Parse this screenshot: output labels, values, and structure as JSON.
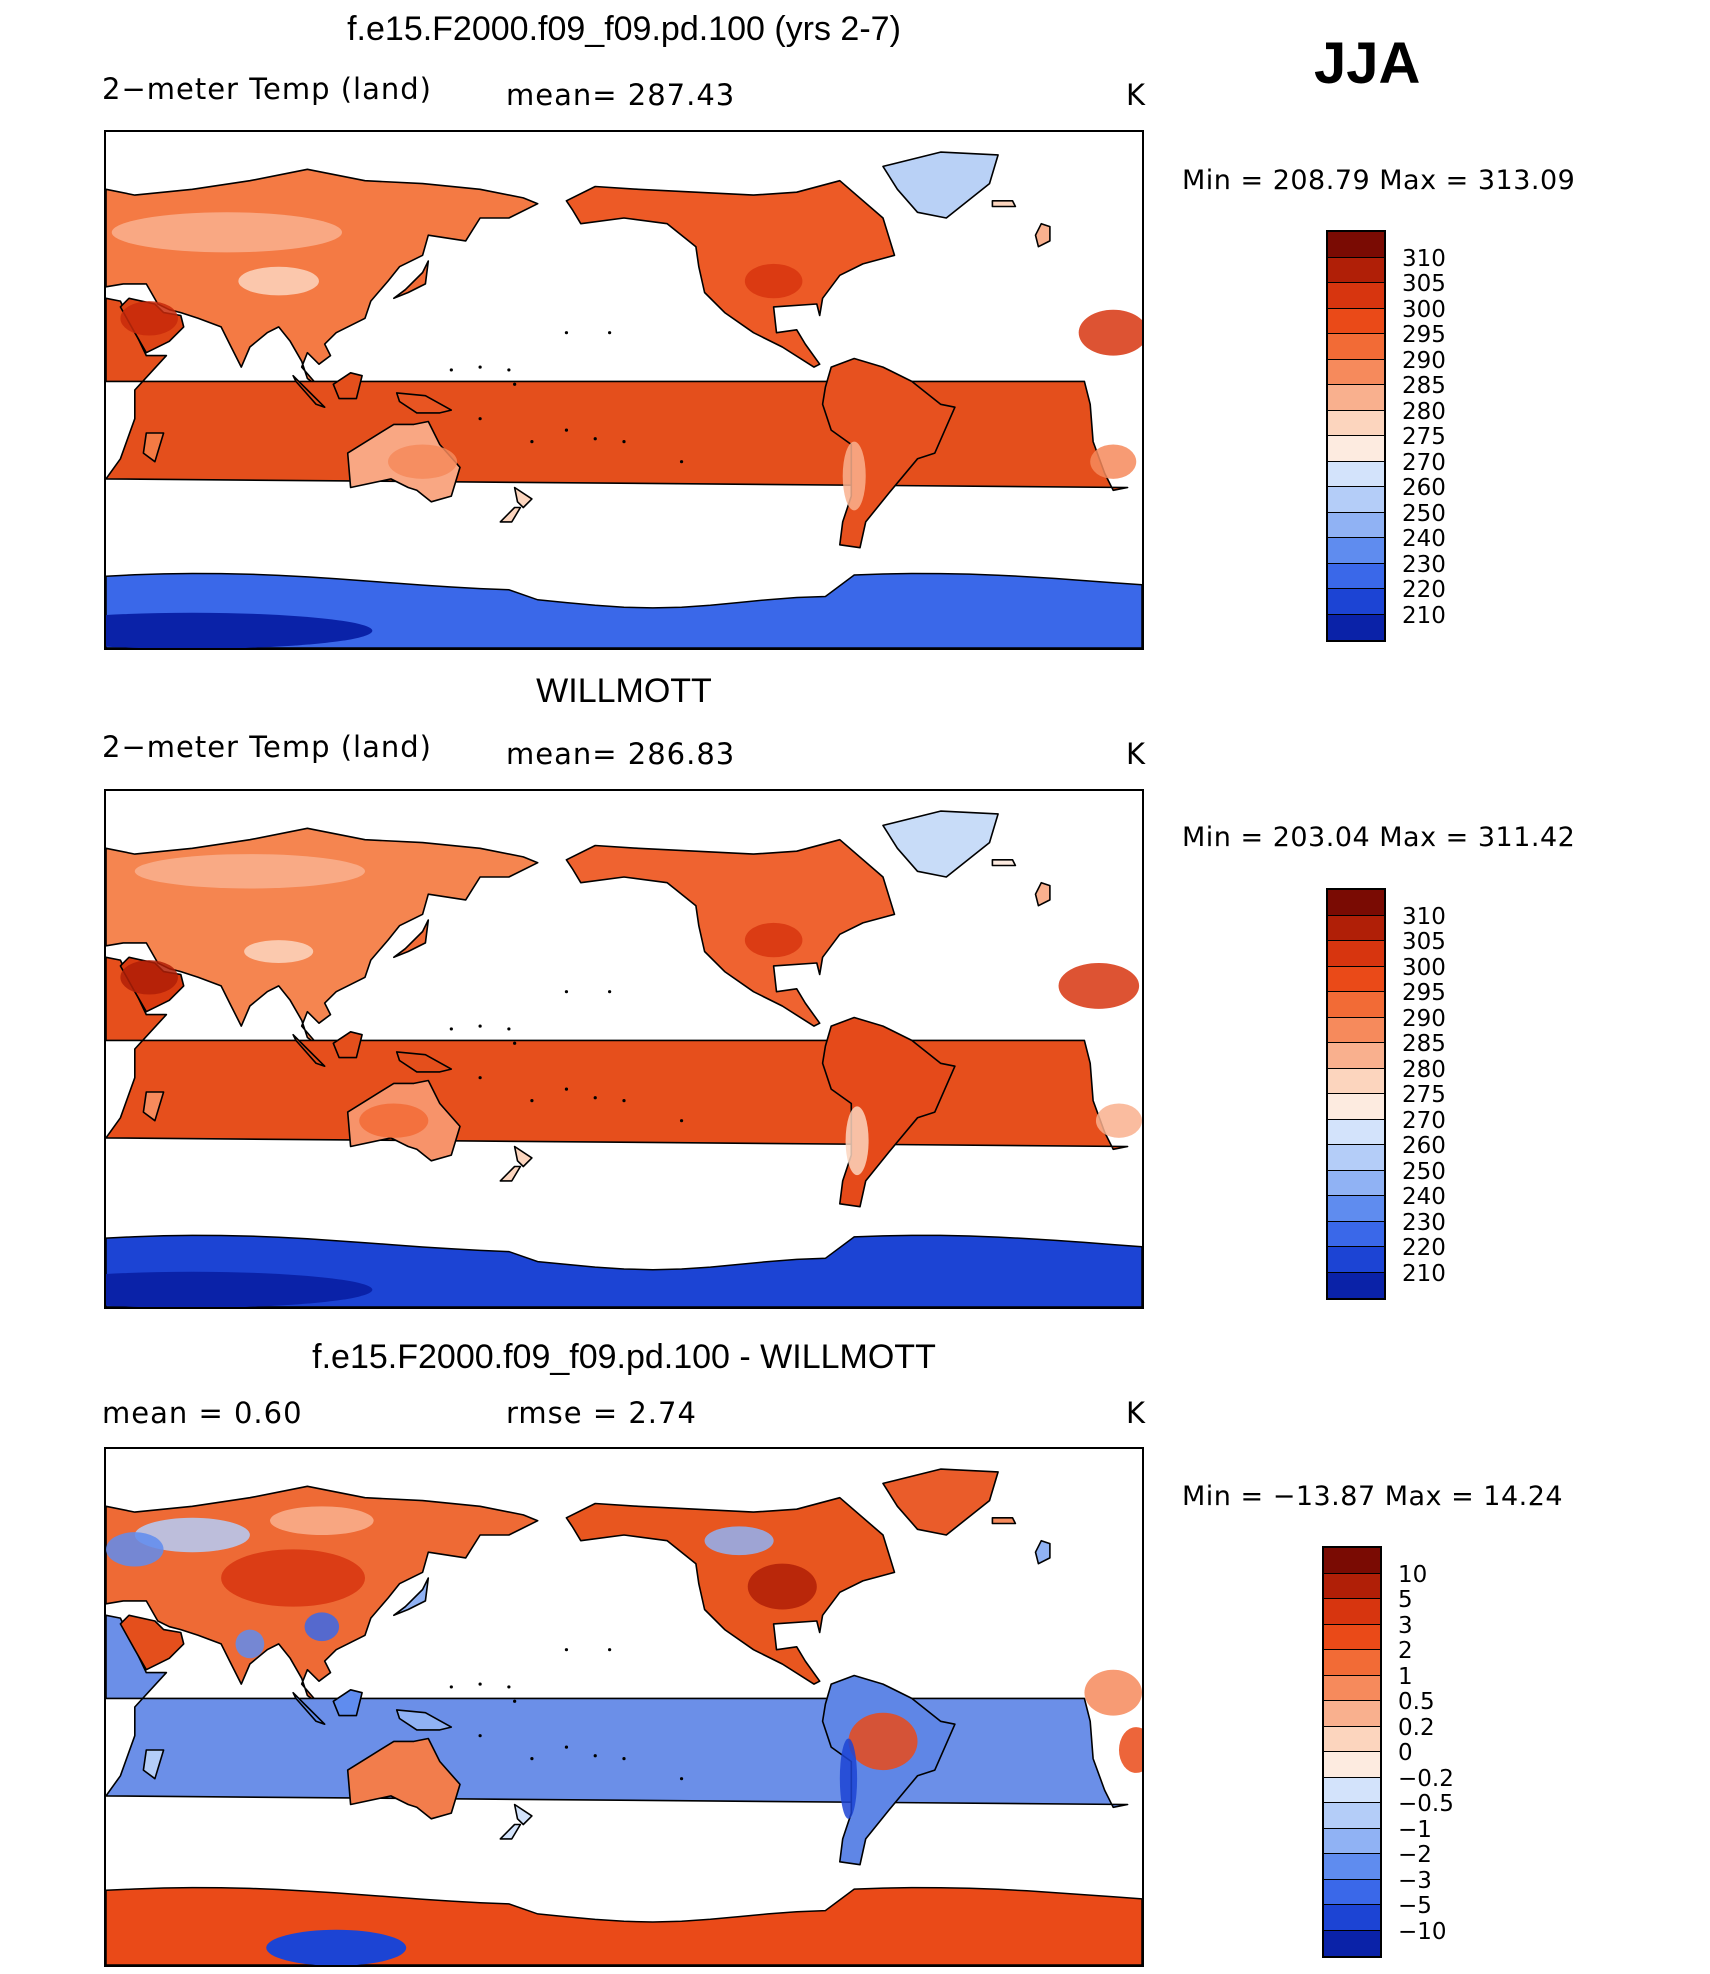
{
  "season": "JJA",
  "panels": [
    {
      "title": "f.e15.F2000.f09_f09.pd.100 (yrs 2-7)",
      "left_label": "2−meter Temp (land)",
      "mid_label": "mean= 287.43",
      "units": "K",
      "minmax": "Min  =  208.79  Max  =  313.09",
      "scheme": "abs",
      "map_variant": "model"
    },
    {
      "title": "WILLMOTT",
      "left_label": "2−meter Temp (land)",
      "mid_label": "mean= 286.83",
      "units": "K",
      "minmax": "Min  =  203.04  Max  =  311.42",
      "scheme": "abs",
      "map_variant": "obs"
    },
    {
      "title": "f.e15.F2000.f09_f09.pd.100 - WILLMOTT",
      "left_label": "mean  =     0.60",
      "mid_label": "rmse  =     2.74",
      "units": "K",
      "minmax": "Min  =  −13.87  Max  =    14.24",
      "scheme": "diff",
      "map_variant": "diff"
    }
  ],
  "colorbars": {
    "abs": {
      "labels": [
        "310",
        "305",
        "300",
        "295",
        "290",
        "285",
        "280",
        "275",
        "270",
        "260",
        "250",
        "240",
        "230",
        "220",
        "210"
      ],
      "colors": [
        "#7a0b03",
        "#b01f07",
        "#d7350f",
        "#ea4a18",
        "#f26b36",
        "#f68a5c",
        "#f9b08e",
        "#fcd5be",
        "#fdebe0",
        "#d3e3fb",
        "#b4cdf8",
        "#90b2f4",
        "#5f8cef",
        "#3a68e9",
        "#1c44d4",
        "#0a22a8"
      ]
    },
    "diff": {
      "labels": [
        "10",
        "5",
        "3",
        "2",
        "1",
        "0.5",
        "0.2",
        "0",
        "−0.2",
        "−0.5",
        "−1",
        "−2",
        "−3",
        "−5",
        "−10"
      ],
      "colors": [
        "#7a0b03",
        "#b01f07",
        "#d7350f",
        "#ea4a18",
        "#f26b36",
        "#f68a5c",
        "#f9b08e",
        "#fcd5be",
        "#fdebe0",
        "#d3e3fb",
        "#b4cdf8",
        "#90b2f4",
        "#5f8cef",
        "#3a68e9",
        "#1c44d4",
        "#0a22a8"
      ]
    }
  }
}
